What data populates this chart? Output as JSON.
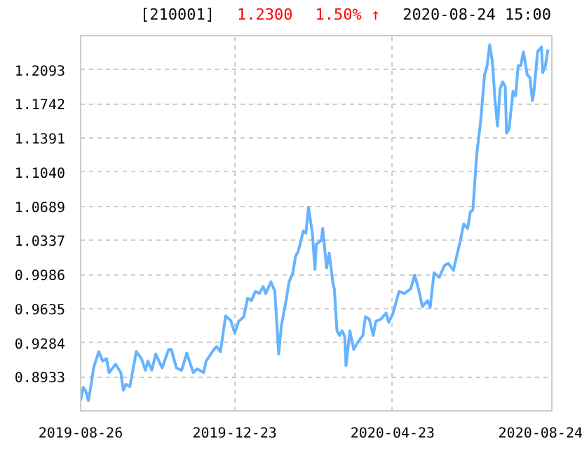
{
  "chart_data": {
    "type": "line",
    "title": "[210001]",
    "annotations": [
      "1.2300",
      "1.50% ↑",
      "2020-08-24 15:00"
    ],
    "series": [
      {
        "color": "#66b3ff",
        "x": [
          "2019-08-26",
          "2019-08-28",
          "2019-08-30",
          "2019-09-01",
          "2019-09-03",
          "2019-09-05",
          "2019-09-09",
          "2019-09-12",
          "2019-09-15",
          "2019-09-17",
          "2019-09-22",
          "2019-09-26",
          "2019-09-28",
          "2019-09-30",
          "2019-10-03",
          "2019-10-08",
          "2019-10-12",
          "2019-10-15",
          "2019-10-17",
          "2019-10-20",
          "2019-10-23",
          "2019-10-28",
          "2019-11-02",
          "2019-11-04",
          "2019-11-08",
          "2019-11-12",
          "2019-11-16",
          "2019-11-21",
          "2019-11-24",
          "2019-11-29",
          "2019-12-01",
          "2019-12-07",
          "2019-12-09",
          "2019-12-12",
          "2019-12-16",
          "2019-12-20",
          "2019-12-23",
          "2019-12-26",
          "2019-12-30",
          "2020-01-02",
          "2020-01-05",
          "2020-01-08",
          "2020-01-11",
          "2020-01-14",
          "2020-01-16",
          "2020-01-20",
          "2020-01-23",
          "2020-01-26",
          "2020-01-28",
          "2020-02-01",
          "2020-02-03",
          "2020-02-06",
          "2020-02-08",
          "2020-02-10",
          "2020-02-11",
          "2020-02-14",
          "2020-02-16",
          "2020-02-18",
          "2020-02-21",
          "2020-02-23",
          "2020-02-24",
          "2020-02-28",
          "2020-02-29",
          "2020-03-03",
          "2020-03-05",
          "2020-03-08",
          "2020-03-09",
          "2020-03-11",
          "2020-03-13",
          "2020-03-15",
          "2020-03-17",
          "2020-03-18",
          "2020-03-21",
          "2020-03-24",
          "2020-03-27",
          "2020-03-31",
          "2020-04-02",
          "2020-04-05",
          "2020-04-08",
          "2020-04-10",
          "2020-04-14",
          "2020-04-18",
          "2020-04-20",
          "2020-04-23",
          "2020-04-28",
          "2020-05-02",
          "2020-05-07",
          "2020-05-10",
          "2020-05-13",
          "2020-05-16",
          "2020-05-20",
          "2020-05-22",
          "2020-05-25",
          "2020-05-29",
          "2020-06-02",
          "2020-06-05",
          "2020-06-09",
          "2020-06-11",
          "2020-06-14",
          "2020-06-17",
          "2020-06-20",
          "2020-06-22",
          "2020-06-24",
          "2020-06-27",
          "2020-06-30",
          "2020-07-03",
          "2020-07-05",
          "2020-07-07",
          "2020-07-09",
          "2020-07-11",
          "2020-07-13",
          "2020-07-15",
          "2020-07-17",
          "2020-07-19",
          "2020-07-20",
          "2020-07-22",
          "2020-07-25",
          "2020-07-27",
          "2020-07-29",
          "2020-07-31",
          "2020-08-02",
          "2020-08-05",
          "2020-08-07",
          "2020-08-09",
          "2020-08-10",
          "2020-08-13",
          "2020-08-16",
          "2020-08-17",
          "2020-08-19",
          "2020-08-21"
        ],
        "values": [
          0.8689,
          0.8823,
          0.8785,
          0.8689,
          0.8842,
          0.9024,
          0.9192,
          0.9096,
          0.912,
          0.8976,
          0.9062,
          0.8976,
          0.8794,
          0.8856,
          0.8832,
          0.9192,
          0.912,
          0.9,
          0.9096,
          0.9,
          0.9168,
          0.9024,
          0.9215,
          0.9215,
          0.9024,
          0.9,
          0.9177,
          0.8976,
          0.9014,
          0.8976,
          0.9096,
          0.9215,
          0.9244,
          0.9192,
          0.956,
          0.9512,
          0.9383,
          0.9503,
          0.9551,
          0.9742,
          0.9718,
          0.9814,
          0.979,
          0.9862,
          0.979,
          0.991,
          0.9814,
          0.9168,
          0.9455,
          0.9742,
          0.991,
          1.0005,
          1.0173,
          1.0221,
          1.0269,
          1.0436,
          1.0412,
          1.0676,
          1.0412,
          1.0039,
          1.0293,
          1.034,
          1.046,
          1.0053,
          1.0206,
          0.9886,
          0.9838,
          0.9407,
          0.9359,
          0.9407,
          0.9349,
          0.9048,
          0.9407,
          0.9215,
          0.9287,
          0.9359,
          0.9551,
          0.9527,
          0.9359,
          0.9503,
          0.9527,
          0.9589,
          0.9493,
          0.9575,
          0.9814,
          0.979,
          0.9838,
          0.9981,
          0.9838,
          0.9656,
          0.9718,
          0.9646,
          1.0005,
          0.9957,
          1.0077,
          1.0101,
          1.0029,
          1.0149,
          1.0316,
          1.0508,
          1.046,
          1.0628,
          1.0652,
          1.1226,
          1.1561,
          1.204,
          1.2135,
          1.2351,
          1.2183,
          1.18,
          1.1513,
          1.1896,
          1.1968,
          1.192,
          1.1441,
          1.1489,
          1.1872,
          1.1824,
          1.2135,
          1.2135,
          1.2279,
          1.204,
          1.2016,
          1.1776,
          1.1848,
          1.2279,
          1.2327,
          1.2064,
          1.2135,
          1.2303
        ]
      }
    ],
    "xlim": [
      "2019-08-26",
      "2020-08-24"
    ],
    "xticks": [
      "2019-08-26",
      "2019-12-23",
      "2020-04-23",
      "2020-08-24"
    ],
    "ylim": [
      0.8582,
      1.2444
    ],
    "yticks": [
      0.8933,
      0.9284,
      0.9635,
      0.9986,
      1.0337,
      1.0689,
      {
        "value": 1.104,
        "label": "1.1040"
      },
      1.1391,
      1.1742,
      1.2093
    ],
    "grid": true,
    "line_style": "solid"
  }
}
